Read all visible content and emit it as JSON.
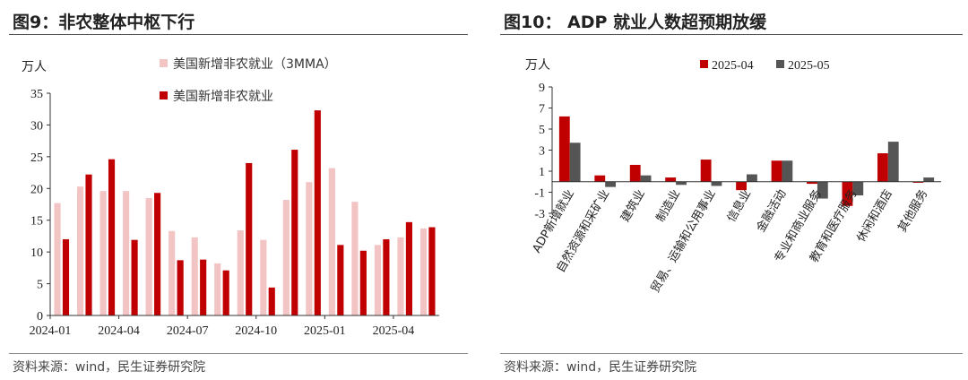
{
  "colors": {
    "light": "#f2c4c4",
    "red": "#c00000",
    "gray": "#555555"
  },
  "left": {
    "title": "图9：非农整体中枢下行",
    "source": "资料来源：wind，民生证券研究院",
    "chart_data": {
      "type": "bar",
      "unit_label": "万人",
      "categories": [
        "2024-01",
        "2024-02",
        "2024-03",
        "2024-04",
        "2024-05",
        "2024-06",
        "2024-07",
        "2024-08",
        "2024-09",
        "2024-10",
        "2024-11",
        "2024-12",
        "2025-01",
        "2025-02",
        "2025-03",
        "2025-04",
        "2025-05"
      ],
      "tick_labels": [
        "2024-01",
        "2024-04",
        "2024-07",
        "2024-10",
        "2025-01",
        "2025-04"
      ],
      "series": [
        {
          "name": "美国新增非农就业（3MMA）",
          "color": "#f2c4c4",
          "values": [
            17.7,
            20.3,
            19.6,
            19.6,
            18.5,
            13.3,
            12.3,
            8.2,
            13.4,
            11.9,
            18.2,
            21.0,
            23.2,
            17.9,
            11.1,
            12.3,
            13.7
          ]
        },
        {
          "name": "美国新增非农就业",
          "color": "#c00000",
          "values": [
            12.0,
            22.2,
            24.6,
            11.9,
            19.3,
            8.7,
            8.8,
            7.1,
            24.0,
            4.4,
            26.1,
            32.3,
            11.1,
            10.2,
            12.0,
            14.7,
            13.9
          ]
        }
      ],
      "ylim": [
        0,
        35
      ],
      "yticks": [
        0,
        5,
        10,
        15,
        20,
        25,
        30,
        35
      ]
    }
  },
  "right": {
    "title": "图10：  ADP 就业人数超预期放缓",
    "source": "资料来源：wind，民生证券研究院",
    "chart_data": {
      "type": "bar",
      "unit_label": "万人",
      "categories": [
        "ADP新增就业",
        "自然资源和采矿业",
        "建筑业",
        "制造业",
        "贸易、运输和公用事业",
        "信息业",
        "金融活动",
        "专业和商业服务",
        "教育和医疗服务",
        "休闲和酒店",
        "其他服务"
      ],
      "series": [
        {
          "name": "2025-04",
          "color": "#c00000",
          "values": [
            6.2,
            0.6,
            1.6,
            0.4,
            2.1,
            -0.8,
            2.0,
            -0.2,
            -2.3,
            2.7,
            -0.1
          ]
        },
        {
          "name": "2025-05",
          "color": "#555555",
          "values": [
            3.7,
            -0.5,
            0.6,
            -0.3,
            -0.4,
            0.7,
            2.0,
            -1.6,
            -1.3,
            3.8,
            0.4
          ]
        }
      ],
      "ylim": [
        -3,
        9
      ],
      "yticks": [
        9,
        7,
        5,
        3,
        1,
        -1,
        -3
      ]
    }
  }
}
